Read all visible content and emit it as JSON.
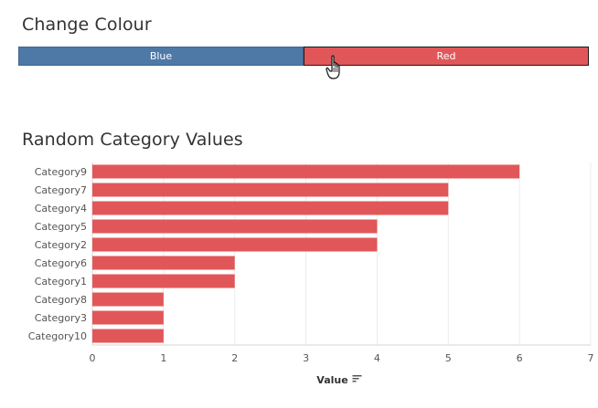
{
  "controls": {
    "title": "Change Colour",
    "options": [
      {
        "label": "Blue",
        "color": "#4e79a7",
        "selected": false
      },
      {
        "label": "Red",
        "color": "#e15759",
        "selected": true
      }
    ]
  },
  "chart_data": {
    "type": "bar",
    "orientation": "horizontal",
    "title": "Random Category Values",
    "xlabel": "Value",
    "ylabel": "",
    "categories": [
      "Category9",
      "Category7",
      "Category4",
      "Category5",
      "Category2",
      "Category6",
      "Category1",
      "Category8",
      "Category3",
      "Category10"
    ],
    "values": [
      6,
      5,
      5,
      4,
      4,
      2,
      2,
      1,
      1,
      1
    ],
    "xlim": [
      0,
      7
    ],
    "xticks": [
      0,
      1,
      2,
      3,
      4,
      5,
      6,
      7
    ],
    "bar_color": "#e15759",
    "grid": true,
    "sort_icon": "sort-descending-icon"
  }
}
